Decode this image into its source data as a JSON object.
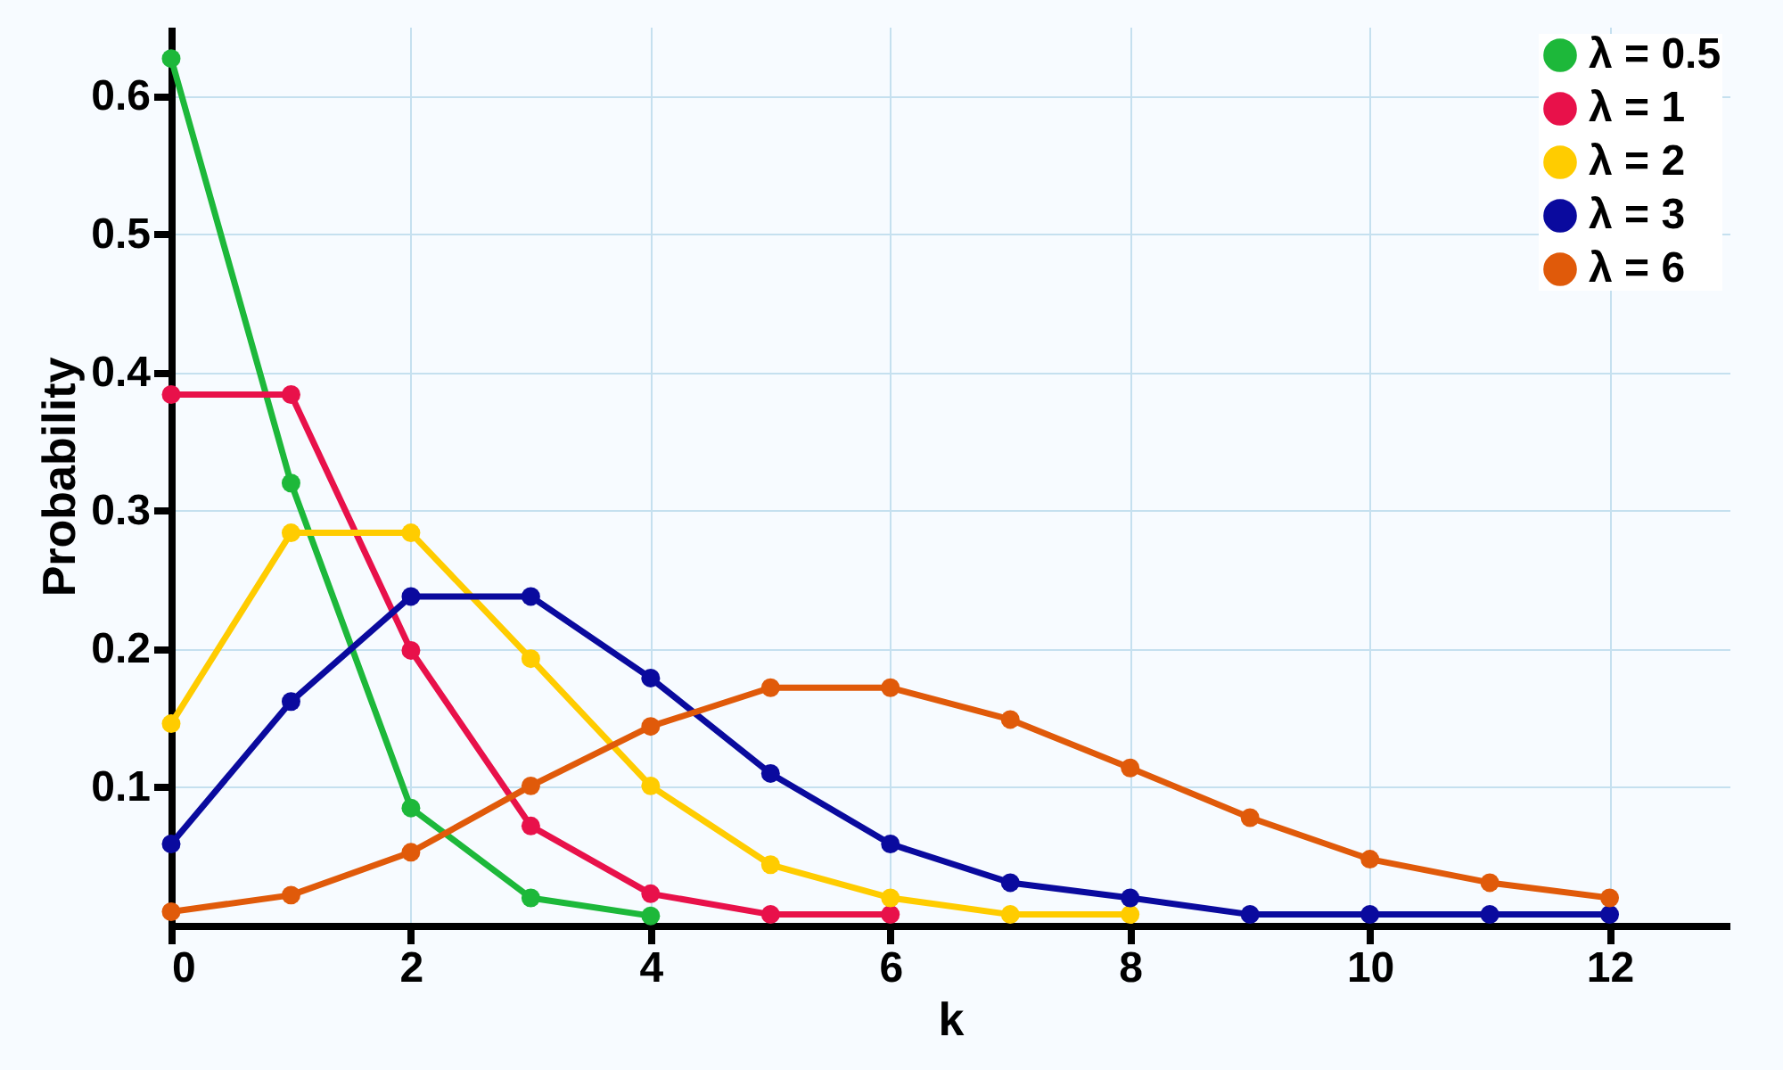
{
  "chart_data": {
    "type": "line",
    "xlabel": "k",
    "ylabel": "Probability",
    "x": [
      0,
      1,
      2,
      3,
      4,
      5,
      6,
      7,
      8,
      9,
      10,
      11,
      12
    ],
    "series": [
      {
        "name": "λ = 0.5",
        "color": "#1db83a",
        "values": [
          0.627,
          0.32,
          0.085,
          0.02,
          0.007,
          null,
          null,
          null,
          null,
          null,
          null,
          null,
          null
        ]
      },
      {
        "name": "λ =  1",
        "color": "#e8114a",
        "values": [
          0.384,
          0.384,
          0.199,
          0.072,
          0.023,
          0.008,
          0.008,
          null,
          null,
          null,
          null,
          null,
          null
        ]
      },
      {
        "name": "λ =  2",
        "color": "#ffcc00",
        "values": [
          0.146,
          0.284,
          0.284,
          0.193,
          0.101,
          0.044,
          0.02,
          0.008,
          0.008,
          null,
          null,
          null,
          null
        ]
      },
      {
        "name": "λ =  3",
        "color": "#0a0a9e",
        "values": [
          0.059,
          0.162,
          0.238,
          0.238,
          0.179,
          0.11,
          0.059,
          0.031,
          0.02,
          0.008,
          0.008,
          0.008,
          0.008
        ]
      },
      {
        "name": "λ =  6",
        "color": "#e05a0a",
        "values": [
          0.01,
          0.022,
          0.053,
          0.101,
          0.144,
          0.172,
          0.172,
          0.149,
          0.114,
          0.078,
          0.048,
          0.031,
          0.02
        ]
      }
    ],
    "xlim": [
      0,
      13
    ],
    "xticks": [
      0,
      2,
      4,
      6,
      8,
      10,
      12
    ],
    "ylim": [
      0,
      0.65
    ],
    "yticks": [
      0.1,
      0.2,
      0.3,
      0.4,
      0.5,
      0.6
    ],
    "grid": true,
    "legend": "top right",
    "marker": "circle",
    "line_style": "solid"
  }
}
